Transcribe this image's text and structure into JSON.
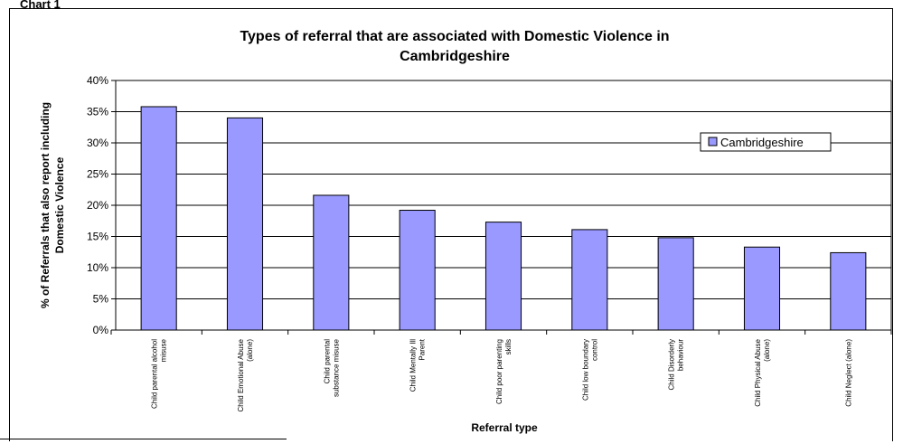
{
  "page_label": "Chart 1",
  "chart_data": {
    "type": "bar",
    "title_lines": [
      "Types of referral that are associated with Domestic Violence in",
      "Cambridgeshire"
    ],
    "xlabel": "Referral type",
    "ylabel_lines": [
      "% of Referrals that also report including",
      "Domestic Violence"
    ],
    "ylim": [
      0,
      40
    ],
    "yticks": [
      0,
      5,
      10,
      15,
      20,
      25,
      30,
      35,
      40
    ],
    "ytick_labels": [
      "0%",
      "5%",
      "10%",
      "15%",
      "20%",
      "25%",
      "30%",
      "35%",
      "40%"
    ],
    "categories": [
      [
        "Child parental alcohol",
        "misuse"
      ],
      [
        "Child Emotional Abuse",
        "(alone)"
      ],
      [
        "Child parental",
        "substance misuse"
      ],
      [
        "Child Mentally Ill",
        "Parent"
      ],
      [
        "Child poor parenting",
        "skills"
      ],
      [
        "Child low boundary",
        "control"
      ],
      [
        "Child Disorderly",
        "behaviour"
      ],
      [
        "Child Physical Abuse",
        "(alone)"
      ],
      [
        "Child Neglect (alone)"
      ]
    ],
    "series": [
      {
        "name": "Cambridgeshire",
        "values": [
          35.8,
          34.0,
          21.6,
          19.2,
          17.3,
          16.1,
          14.8,
          13.3,
          12.4
        ]
      }
    ],
    "legend_position": "top-right",
    "grid": true,
    "bar_color": "#9999ff",
    "bar_edge_color": "#000000"
  }
}
